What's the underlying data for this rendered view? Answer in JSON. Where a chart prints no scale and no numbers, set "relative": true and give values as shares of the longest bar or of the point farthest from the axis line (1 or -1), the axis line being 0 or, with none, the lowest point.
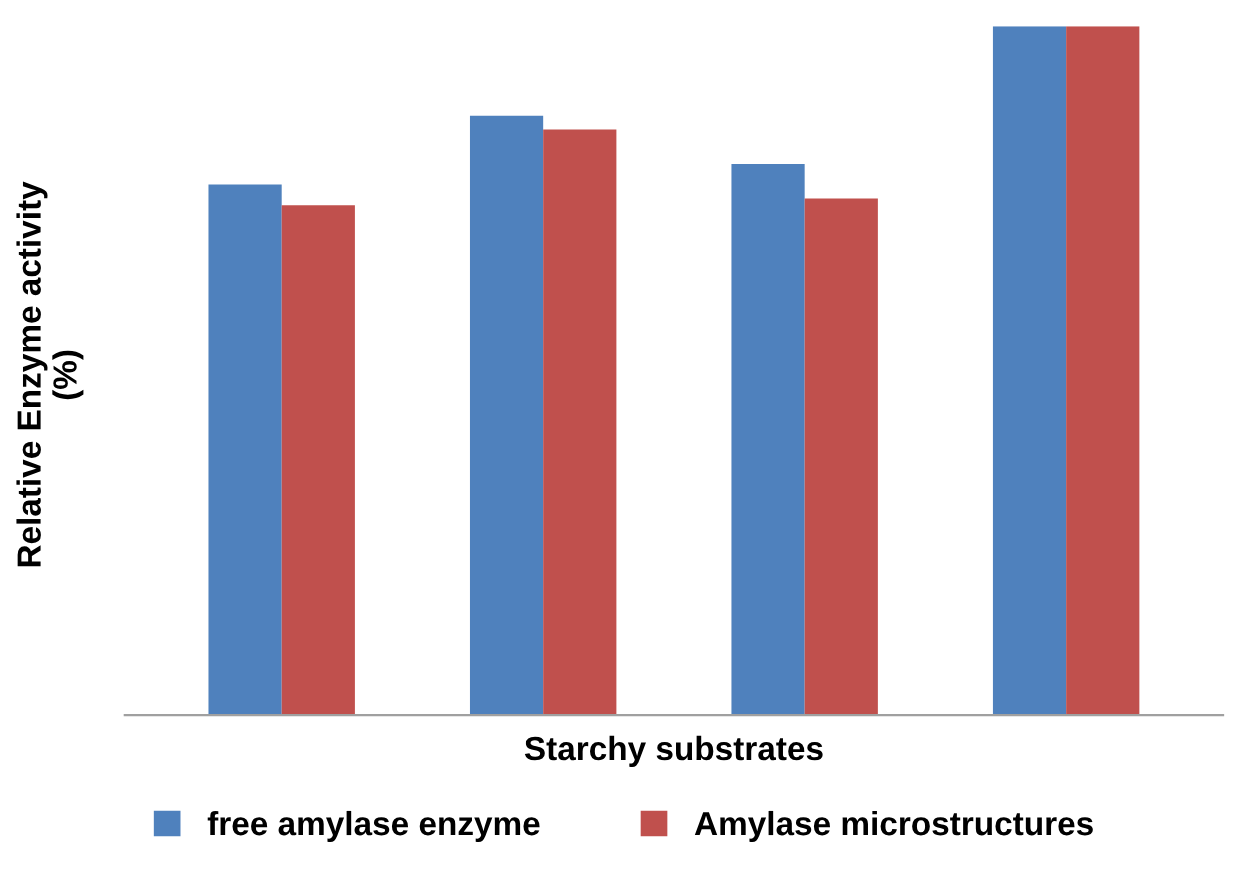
{
  "chart_data": {
    "type": "bar",
    "xlabel": "Starchy substrates",
    "ylabel": "Relative Enzyme activity\n(%)",
    "categories": [
      null,
      null,
      null,
      null
    ],
    "relative": true,
    "legend": "bottom",
    "grid": false,
    "series": [
      {
        "name": "free amylase enzyme",
        "color": "#4f81bd",
        "values": [
          0.77,
          0.87,
          0.8,
          1
        ]
      },
      {
        "name": "Amylase microstructures",
        "color": "#c0504d",
        "values": [
          0.74,
          0.85,
          0.75,
          1
        ]
      }
    ]
  }
}
